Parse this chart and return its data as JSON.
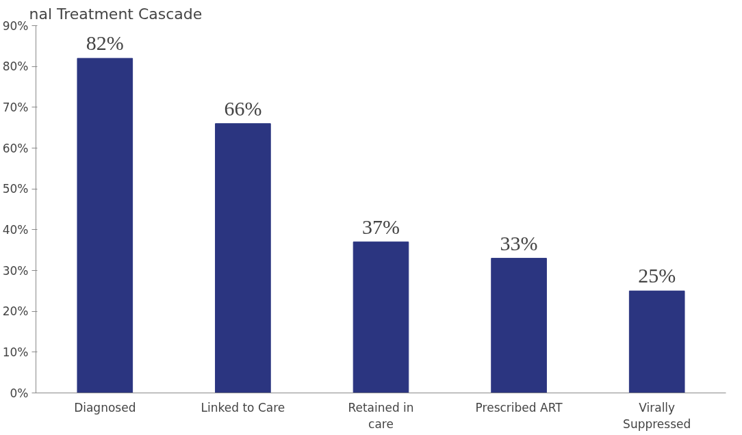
{
  "chart_data": {
    "type": "bar",
    "title": "nal Treatment Cascade",
    "categories": [
      "Diagnosed",
      "Linked to Care",
      "Retained in\ncare",
      "Prescribed ART",
      "Virally\nSuppressed"
    ],
    "values": [
      82,
      66,
      37,
      33,
      25
    ],
    "color": "#2b3580",
    "value_labels": [
      "82%",
      "66%",
      "37%",
      "33%",
      "25%"
    ],
    "ylim": [
      0,
      90
    ],
    "yticks": [
      {
        "value": 0,
        "label": "0%"
      },
      {
        "value": 10,
        "label": "10%"
      },
      {
        "value": 20,
        "label": "20%"
      },
      {
        "value": 30,
        "label": "30%"
      },
      {
        "value": 40,
        "label": "40%"
      },
      {
        "value": 50,
        "label": "50%"
      },
      {
        "value": 60,
        "label": "60%"
      },
      {
        "value": 70,
        "label": "70%"
      },
      {
        "value": 80,
        "label": "80%"
      },
      {
        "value": 90,
        "label": "90%"
      }
    ],
    "grid": false
  }
}
